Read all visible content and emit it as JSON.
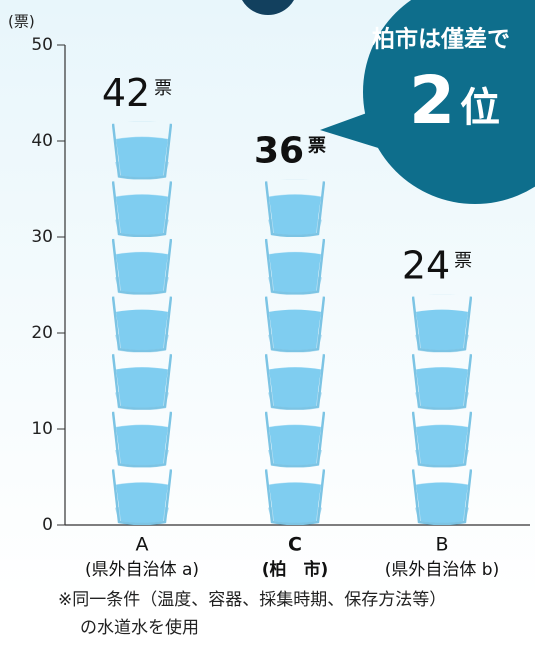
{
  "chart_data": {
    "type": "pictograph",
    "y_unit_label": "(票)",
    "categories": [
      "A",
      "C",
      "B"
    ],
    "category_notes": [
      "(県外自治体 a)",
      "(柏　市)",
      "(県外自治体 b)"
    ],
    "highlight": 1,
    "values": [
      42,
      36,
      24
    ],
    "data_label_unit": "票",
    "ylim": [
      0,
      50
    ],
    "yticks": [
      0,
      10,
      20,
      30,
      40,
      50
    ],
    "callout": {
      "line1": "柏市は僅差で",
      "line2": "2",
      "line3": "位",
      "color": "#0e6e8c"
    },
    "footnote": [
      "※同一条件（温度、容器、採集時期、保存方法等）",
      "の水道水を使用"
    ]
  }
}
